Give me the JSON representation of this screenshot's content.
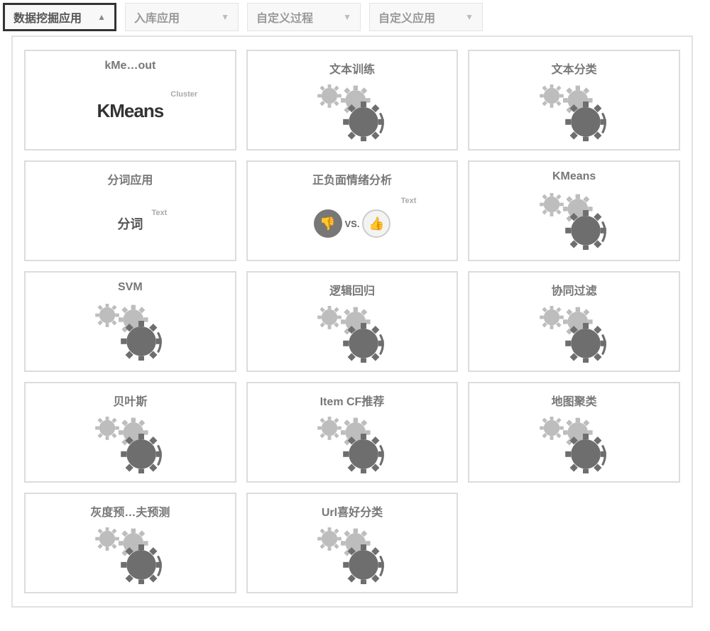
{
  "colors": {
    "border": "#dcdcdc",
    "panel_border": "#e2e2e2",
    "tab_border": "#e4e4e4",
    "tab_bg": "#f8f8f8",
    "tab_text": "#999999",
    "tab_active_border": "#333333",
    "card_title": "#777777",
    "gear_light": "#bdbdbd",
    "gear_dark": "#6e6e6e",
    "bg": "#ffffff"
  },
  "tabs": [
    {
      "id": "data-mining",
      "label": "数据挖掘应用",
      "active": true,
      "chevron": "up"
    },
    {
      "id": "import",
      "label": "入库应用",
      "active": false,
      "chevron": "down"
    },
    {
      "id": "custom-process",
      "label": "自定义过程",
      "active": false,
      "chevron": "down"
    },
    {
      "id": "custom-app",
      "label": "自定义应用",
      "active": false,
      "chevron": "down"
    }
  ],
  "cards": [
    {
      "id": "kmeans-out",
      "title": "kMe…out",
      "icon": "kmeans-label",
      "label_main": "KMeans",
      "badge": "Cluster"
    },
    {
      "id": "text-train",
      "title": "文本训练",
      "icon": "gear"
    },
    {
      "id": "text-classify",
      "title": "文本分类",
      "icon": "gear"
    },
    {
      "id": "segmentation",
      "title": "分词应用",
      "icon": "fenci-label",
      "label_main": "分词",
      "badge": "Text"
    },
    {
      "id": "sentiment",
      "title": "正负面情绪分析",
      "icon": "vs",
      "vs_text": "VS.",
      "badge": "Text"
    },
    {
      "id": "kmeans",
      "title": "KMeans",
      "icon": "gear"
    },
    {
      "id": "svm",
      "title": "SVM",
      "icon": "gear"
    },
    {
      "id": "logistic",
      "title": "逻辑回归",
      "icon": "gear"
    },
    {
      "id": "collab",
      "title": "协同过滤",
      "icon": "gear"
    },
    {
      "id": "bayes",
      "title": "贝叶斯",
      "icon": "gear"
    },
    {
      "id": "itemcf",
      "title": "Item CF推荐",
      "icon": "gear"
    },
    {
      "id": "map-cluster",
      "title": "地图聚类",
      "icon": "gear"
    },
    {
      "id": "grey-predict",
      "title": "灰度预…夫预测",
      "icon": "gear"
    },
    {
      "id": "url-classify",
      "title": "Url喜好分类",
      "icon": "gear"
    }
  ],
  "icons": {
    "chevron_up": "▲",
    "chevron_down": "▼",
    "thumb_down": "👎",
    "thumb_up": "👍"
  }
}
